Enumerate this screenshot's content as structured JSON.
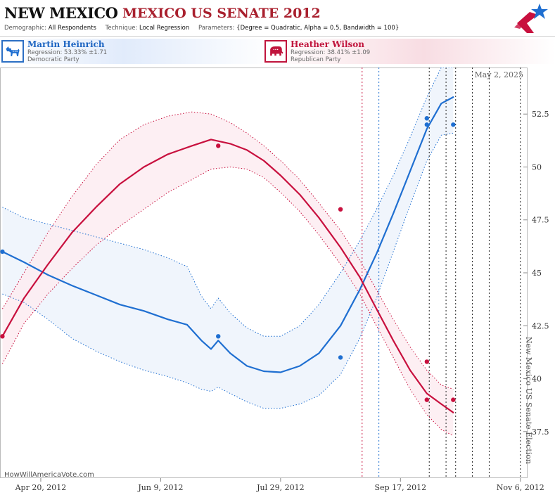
{
  "header": {
    "title_state": "NEW MEXICO",
    "title_race": "MEXICO US SENATE 2012",
    "demographic_label": "Demographic:",
    "demographic_value": "All Respondents",
    "technique_label": "Technique:",
    "technique_value": "Local Regression",
    "parameters_label": "Parameters:",
    "parameters_value": "{Degree = Quadratic, Alpha = 0.5, Bandwidth = 100}"
  },
  "candidates": [
    {
      "name": "Martin Heinrich",
      "regression": "Regression: 53.33% ±1.71",
      "party": "Democratic Party",
      "color": "#1f6fd1",
      "icon": "donkey-icon"
    },
    {
      "name": "Heather Wilson",
      "regression": "Regression: 38.41% ±1.09",
      "party": "Republican Party",
      "color": "#c8103e",
      "icon": "elephant-icon"
    }
  ],
  "chart_data": {
    "type": "line",
    "x_axis_type": "date",
    "x_range": [
      "2012-04-03",
      "2012-11-09"
    ],
    "x_ticks": [
      {
        "date": "2012-04-20",
        "label": "Apr 20, 2012"
      },
      {
        "date": "2012-06-09",
        "label": "Jun 9, 2012"
      },
      {
        "date": "2012-07-29",
        "label": "Jul 29, 2012"
      },
      {
        "date": "2012-09-17",
        "label": "Sep 17, 2012"
      },
      {
        "date": "2012-11-06",
        "label": "Nov 6, 2012"
      }
    ],
    "ylim": [
      35.3,
      54.7
    ],
    "y_ticks": [
      37.5,
      40,
      42.5,
      45,
      47.5,
      50,
      52.5
    ],
    "y_tick_labels": [
      "37.5",
      "40",
      "42.5",
      "45",
      "47.5",
      "50",
      "52.5"
    ],
    "grid": false,
    "date_annotation": "May 2, 2025",
    "election_label": "New Mexico US Senate Election",
    "source_text": "HowWillAmericaVote.com",
    "vertical_markers": [
      {
        "date": "2012-09-01",
        "color": "#c8103e"
      },
      {
        "date": "2012-09-08",
        "color": "#1f6fd1"
      },
      {
        "date": "2012-09-29",
        "color": "#222222"
      },
      {
        "date": "2012-10-06",
        "color": "#222222"
      },
      {
        "date": "2012-10-10",
        "color": "#222222"
      },
      {
        "date": "2012-10-17",
        "color": "#222222"
      },
      {
        "date": "2012-10-24",
        "color": "#222222"
      },
      {
        "date": "2012-11-06",
        "color": "#222222"
      }
    ],
    "series": [
      {
        "name": "Martin Heinrich",
        "color": "#1f6fd1",
        "band_fill": "#edf3fc",
        "points": [
          {
            "date": "2012-04-04",
            "value": 46.0
          },
          {
            "date": "2012-07-03",
            "value": 42.0
          },
          {
            "date": "2012-08-23",
            "value": 41.0
          },
          {
            "date": "2012-09-28",
            "value": 52.3
          },
          {
            "date": "2012-09-28",
            "value": 52.0
          },
          {
            "date": "2012-10-09",
            "value": 52.0
          }
        ],
        "fit": [
          {
            "date": "2012-04-04",
            "value": 46.0
          },
          {
            "date": "2012-04-13",
            "value": 45.5
          },
          {
            "date": "2012-04-23",
            "value": 44.9
          },
          {
            "date": "2012-05-03",
            "value": 44.4
          },
          {
            "date": "2012-05-13",
            "value": 43.95
          },
          {
            "date": "2012-05-23",
            "value": 43.5
          },
          {
            "date": "2012-06-02",
            "value": 43.2
          },
          {
            "date": "2012-06-12",
            "value": 42.8
          },
          {
            "date": "2012-06-20",
            "value": 42.55
          },
          {
            "date": "2012-06-26",
            "value": 41.8
          },
          {
            "date": "2012-06-30",
            "value": 41.4
          },
          {
            "date": "2012-07-03",
            "value": 41.8
          },
          {
            "date": "2012-07-08",
            "value": 41.2
          },
          {
            "date": "2012-07-15",
            "value": 40.6
          },
          {
            "date": "2012-07-22",
            "value": 40.35
          },
          {
            "date": "2012-07-29",
            "value": 40.3
          },
          {
            "date": "2012-08-06",
            "value": 40.6
          },
          {
            "date": "2012-08-14",
            "value": 41.2
          },
          {
            "date": "2012-08-23",
            "value": 42.5
          },
          {
            "date": "2012-08-31",
            "value": 44.2
          },
          {
            "date": "2012-09-07",
            "value": 45.9
          },
          {
            "date": "2012-09-14",
            "value": 47.8
          },
          {
            "date": "2012-09-21",
            "value": 49.8
          },
          {
            "date": "2012-09-28",
            "value": 51.8
          },
          {
            "date": "2012-10-04",
            "value": 53.0
          },
          {
            "date": "2012-10-09",
            "value": 53.3
          }
        ],
        "upper": [
          {
            "date": "2012-04-04",
            "value": 48.1
          },
          {
            "date": "2012-04-13",
            "value": 47.6
          },
          {
            "date": "2012-04-23",
            "value": 47.3
          },
          {
            "date": "2012-05-03",
            "value": 47.0
          },
          {
            "date": "2012-05-13",
            "value": 46.7
          },
          {
            "date": "2012-05-23",
            "value": 46.4
          },
          {
            "date": "2012-06-02",
            "value": 46.1
          },
          {
            "date": "2012-06-12",
            "value": 45.7
          },
          {
            "date": "2012-06-20",
            "value": 45.3
          },
          {
            "date": "2012-06-26",
            "value": 43.9
          },
          {
            "date": "2012-06-30",
            "value": 43.3
          },
          {
            "date": "2012-07-03",
            "value": 43.8
          },
          {
            "date": "2012-07-08",
            "value": 43.1
          },
          {
            "date": "2012-07-15",
            "value": 42.4
          },
          {
            "date": "2012-07-22",
            "value": 42.0
          },
          {
            "date": "2012-07-29",
            "value": 42.0
          },
          {
            "date": "2012-08-06",
            "value": 42.5
          },
          {
            "date": "2012-08-14",
            "value": 43.5
          },
          {
            "date": "2012-08-23",
            "value": 45.0
          },
          {
            "date": "2012-08-31",
            "value": 46.5
          },
          {
            "date": "2012-09-07",
            "value": 48.0
          },
          {
            "date": "2012-09-14",
            "value": 49.6
          },
          {
            "date": "2012-09-21",
            "value": 51.4
          },
          {
            "date": "2012-09-28",
            "value": 53.3
          },
          {
            "date": "2012-10-04",
            "value": 54.7
          },
          {
            "date": "2012-10-09",
            "value": 54.7
          }
        ],
        "lower": [
          {
            "date": "2012-04-04",
            "value": 44.0
          },
          {
            "date": "2012-04-13",
            "value": 43.6
          },
          {
            "date": "2012-04-23",
            "value": 42.8
          },
          {
            "date": "2012-05-03",
            "value": 41.9
          },
          {
            "date": "2012-05-13",
            "value": 41.3
          },
          {
            "date": "2012-05-23",
            "value": 40.8
          },
          {
            "date": "2012-06-02",
            "value": 40.4
          },
          {
            "date": "2012-06-12",
            "value": 40.1
          },
          {
            "date": "2012-06-20",
            "value": 39.8
          },
          {
            "date": "2012-06-26",
            "value": 39.5
          },
          {
            "date": "2012-06-30",
            "value": 39.4
          },
          {
            "date": "2012-07-03",
            "value": 39.6
          },
          {
            "date": "2012-07-08",
            "value": 39.3
          },
          {
            "date": "2012-07-15",
            "value": 38.9
          },
          {
            "date": "2012-07-22",
            "value": 38.6
          },
          {
            "date": "2012-07-29",
            "value": 38.6
          },
          {
            "date": "2012-08-06",
            "value": 38.8
          },
          {
            "date": "2012-08-14",
            "value": 39.2
          },
          {
            "date": "2012-08-23",
            "value": 40.2
          },
          {
            "date": "2012-08-31",
            "value": 41.9
          },
          {
            "date": "2012-09-07",
            "value": 43.8
          },
          {
            "date": "2012-09-14",
            "value": 46.0
          },
          {
            "date": "2012-09-21",
            "value": 48.2
          },
          {
            "date": "2012-09-28",
            "value": 50.3
          },
          {
            "date": "2012-10-04",
            "value": 51.5
          },
          {
            "date": "2012-10-09",
            "value": 51.6
          }
        ]
      },
      {
        "name": "Heather Wilson",
        "color": "#c8103e",
        "band_fill": "#fdecf1",
        "points": [
          {
            "date": "2012-04-04",
            "value": 42.0
          },
          {
            "date": "2012-07-03",
            "value": 51.0
          },
          {
            "date": "2012-08-23",
            "value": 48.0
          },
          {
            "date": "2012-09-28",
            "value": 40.8
          },
          {
            "date": "2012-09-28",
            "value": 39.0
          },
          {
            "date": "2012-10-09",
            "value": 39.0
          }
        ],
        "fit": [
          {
            "date": "2012-04-04",
            "value": 42.0
          },
          {
            "date": "2012-04-13",
            "value": 43.8
          },
          {
            "date": "2012-04-23",
            "value": 45.4
          },
          {
            "date": "2012-05-03",
            "value": 46.9
          },
          {
            "date": "2012-05-13",
            "value": 48.1
          },
          {
            "date": "2012-05-23",
            "value": 49.2
          },
          {
            "date": "2012-06-02",
            "value": 50.0
          },
          {
            "date": "2012-06-12",
            "value": 50.6
          },
          {
            "date": "2012-06-22",
            "value": 51.0
          },
          {
            "date": "2012-06-30",
            "value": 51.3
          },
          {
            "date": "2012-07-08",
            "value": 51.1
          },
          {
            "date": "2012-07-15",
            "value": 50.8
          },
          {
            "date": "2012-07-22",
            "value": 50.3
          },
          {
            "date": "2012-07-29",
            "value": 49.6
          },
          {
            "date": "2012-08-06",
            "value": 48.7
          },
          {
            "date": "2012-08-14",
            "value": 47.6
          },
          {
            "date": "2012-08-23",
            "value": 46.2
          },
          {
            "date": "2012-08-31",
            "value": 44.8
          },
          {
            "date": "2012-09-07",
            "value": 43.3
          },
          {
            "date": "2012-09-14",
            "value": 41.8
          },
          {
            "date": "2012-09-21",
            "value": 40.4
          },
          {
            "date": "2012-09-28",
            "value": 39.3
          },
          {
            "date": "2012-10-04",
            "value": 38.8
          },
          {
            "date": "2012-10-09",
            "value": 38.4
          }
        ],
        "upper": [
          {
            "date": "2012-04-04",
            "value": 43.3
          },
          {
            "date": "2012-04-13",
            "value": 45.0
          },
          {
            "date": "2012-04-23",
            "value": 46.9
          },
          {
            "date": "2012-05-03",
            "value": 48.6
          },
          {
            "date": "2012-05-13",
            "value": 50.1
          },
          {
            "date": "2012-05-23",
            "value": 51.3
          },
          {
            "date": "2012-06-02",
            "value": 52.0
          },
          {
            "date": "2012-06-12",
            "value": 52.4
          },
          {
            "date": "2012-06-22",
            "value": 52.6
          },
          {
            "date": "2012-06-30",
            "value": 52.5
          },
          {
            "date": "2012-07-08",
            "value": 52.1
          },
          {
            "date": "2012-07-15",
            "value": 51.6
          },
          {
            "date": "2012-07-22",
            "value": 51.0
          },
          {
            "date": "2012-07-29",
            "value": 50.3
          },
          {
            "date": "2012-08-06",
            "value": 49.4
          },
          {
            "date": "2012-08-14",
            "value": 48.3
          },
          {
            "date": "2012-08-23",
            "value": 47.0
          },
          {
            "date": "2012-08-31",
            "value": 45.6
          },
          {
            "date": "2012-09-07",
            "value": 44.2
          },
          {
            "date": "2012-09-14",
            "value": 42.8
          },
          {
            "date": "2012-09-21",
            "value": 41.5
          },
          {
            "date": "2012-09-28",
            "value": 40.4
          },
          {
            "date": "2012-10-04",
            "value": 39.7
          },
          {
            "date": "2012-10-09",
            "value": 39.5
          }
        ],
        "lower": [
          {
            "date": "2012-04-04",
            "value": 40.7
          },
          {
            "date": "2012-04-13",
            "value": 42.6
          },
          {
            "date": "2012-04-23",
            "value": 44.0
          },
          {
            "date": "2012-05-03",
            "value": 45.2
          },
          {
            "date": "2012-05-13",
            "value": 46.3
          },
          {
            "date": "2012-05-23",
            "value": 47.2
          },
          {
            "date": "2012-06-02",
            "value": 48.0
          },
          {
            "date": "2012-06-12",
            "value": 48.8
          },
          {
            "date": "2012-06-22",
            "value": 49.4
          },
          {
            "date": "2012-06-30",
            "value": 49.9
          },
          {
            "date": "2012-07-08",
            "value": 50.0
          },
          {
            "date": "2012-07-15",
            "value": 49.9
          },
          {
            "date": "2012-07-22",
            "value": 49.5
          },
          {
            "date": "2012-07-29",
            "value": 48.8
          },
          {
            "date": "2012-08-06",
            "value": 47.9
          },
          {
            "date": "2012-08-14",
            "value": 46.8
          },
          {
            "date": "2012-08-23",
            "value": 45.4
          },
          {
            "date": "2012-08-31",
            "value": 44.0
          },
          {
            "date": "2012-09-07",
            "value": 42.5
          },
          {
            "date": "2012-09-14",
            "value": 41.0
          },
          {
            "date": "2012-09-21",
            "value": 39.5
          },
          {
            "date": "2012-09-28",
            "value": 38.3
          },
          {
            "date": "2012-10-04",
            "value": 37.6
          },
          {
            "date": "2012-10-09",
            "value": 37.3
          }
        ]
      }
    ]
  }
}
